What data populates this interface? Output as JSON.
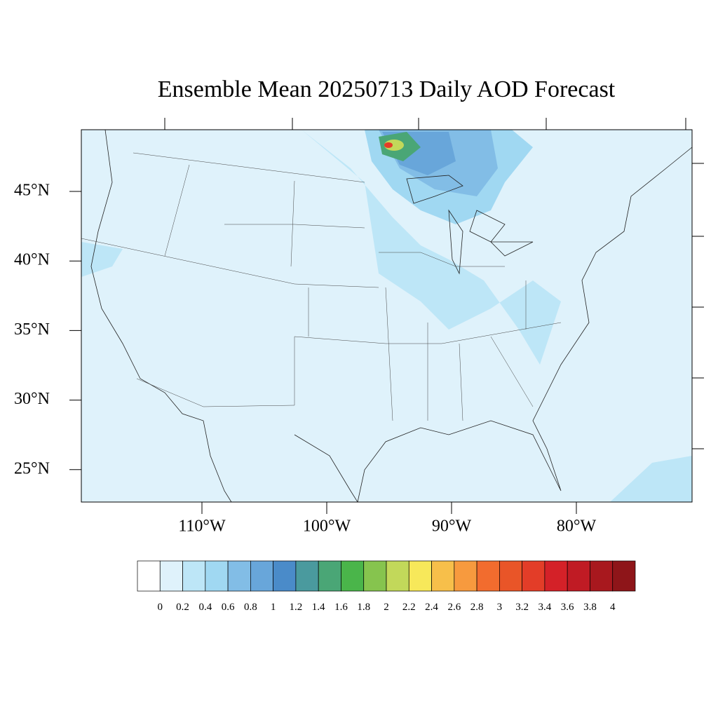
{
  "title": "Ensemble Mean 20250713 Daily AOD Forecast",
  "map": {
    "lat_labels": [
      "45°N",
      "40°N",
      "35°N",
      "30°N",
      "25°N"
    ],
    "lon_labels": [
      "110°W",
      "100°W",
      "90°W",
      "80°W"
    ]
  },
  "colorbar": {
    "levels": [
      0,
      0.2,
      0.4,
      0.6,
      0.8,
      1,
      1.2,
      1.4,
      1.6,
      1.8,
      2,
      2.2,
      2.4,
      2.6,
      2.8,
      3,
      3.2,
      3.4,
      3.6,
      3.8,
      4
    ],
    "colors": [
      "#ffffff",
      "#dff2fb",
      "#bde6f7",
      "#a0d8f2",
      "#82bde6",
      "#68a6da",
      "#4a8bc9",
      "#4a9a9e",
      "#4aa676",
      "#4ab54a",
      "#86c44e",
      "#c2d85a",
      "#f7e85a",
      "#f7bf4a",
      "#f79a3e",
      "#f26c2e",
      "#e95528",
      "#e33d28",
      "#d42128",
      "#c01b24",
      "#a8181e",
      "#8e1519"
    ]
  }
}
